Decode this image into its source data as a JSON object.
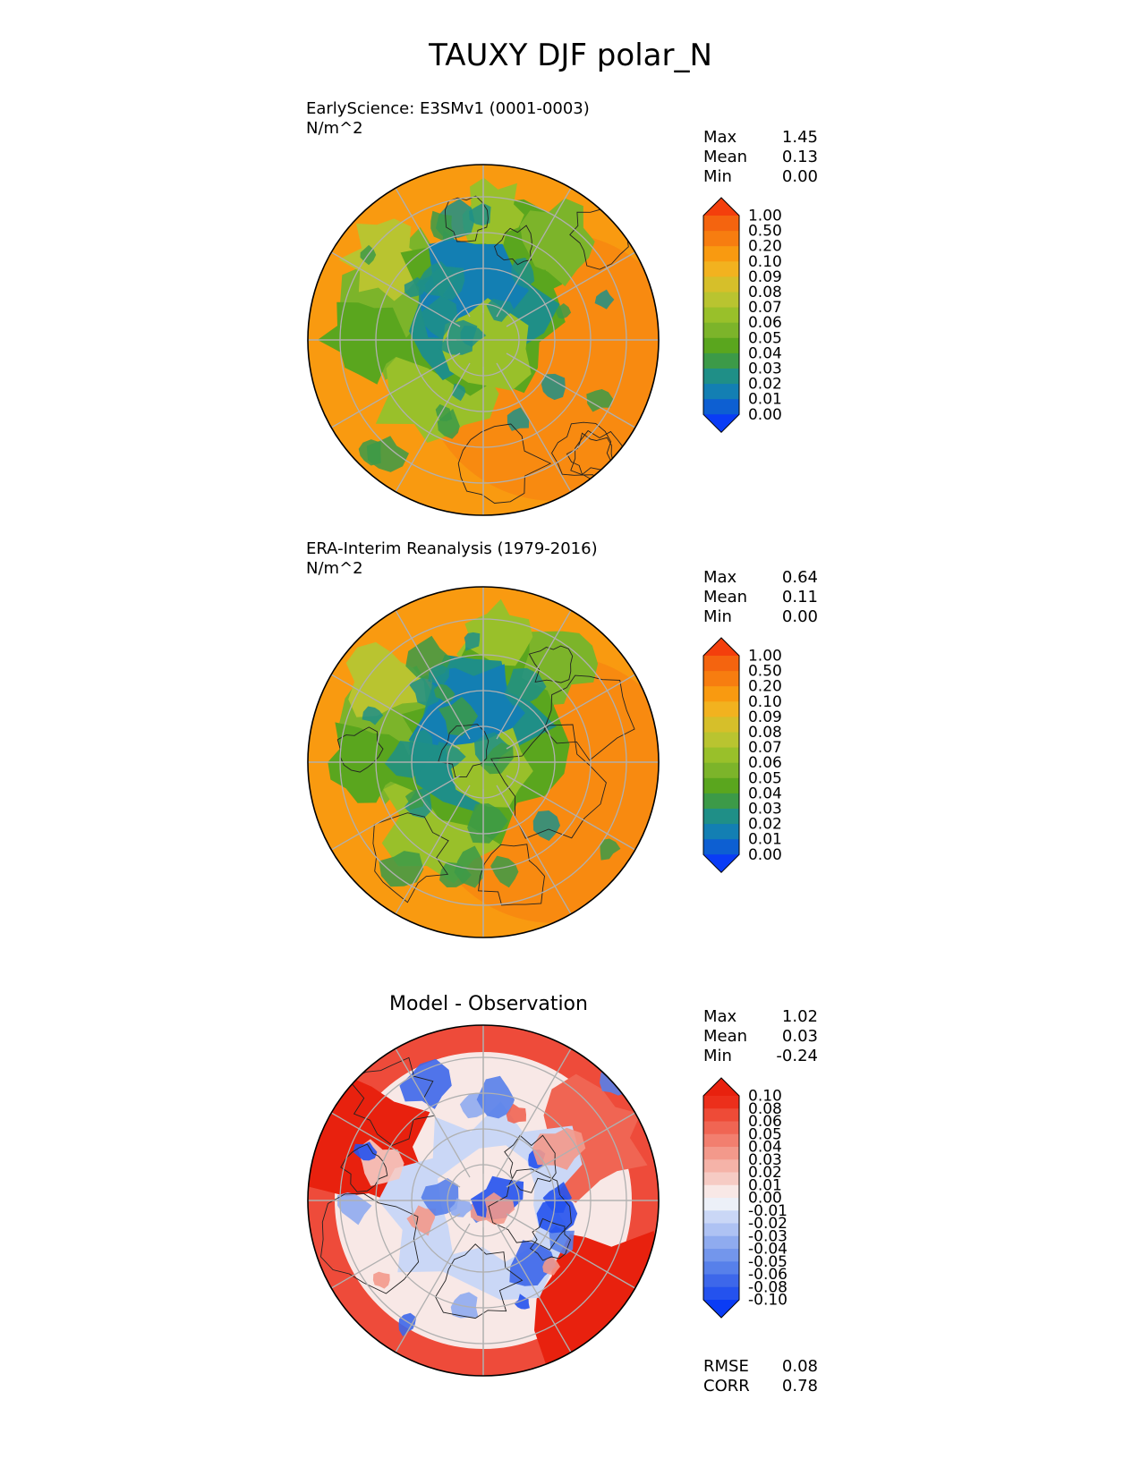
{
  "title": "TAUXY DJF polar_N",
  "panels": [
    {
      "id": "test",
      "title": "EarlyScience: E3SMv1 (0001-0003)",
      "units": "N/m^2",
      "stats": [
        {
          "label": "Max",
          "value": "1.45"
        },
        {
          "label": "Mean",
          "value": "0.13"
        },
        {
          "label": "Min",
          "value": "0.00"
        }
      ]
    },
    {
      "id": "reference",
      "title": "ERA-Interim Reanalysis (1979-2016)",
      "units": "N/m^2",
      "stats": [
        {
          "label": "Max",
          "value": "0.64"
        },
        {
          "label": "Mean",
          "value": "0.11"
        },
        {
          "label": "Min",
          "value": "0.00"
        }
      ]
    },
    {
      "id": "diff",
      "title": "Model - Observation",
      "units": "",
      "stats": [
        {
          "label": "Max",
          "value": "1.02"
        },
        {
          "label": "Mean",
          "value": "0.03"
        },
        {
          "label": "Min",
          "value": "-0.24"
        }
      ],
      "metrics": [
        {
          "label": "RMSE",
          "value": "0.08"
        },
        {
          "label": "CORR",
          "value": "0.78"
        }
      ]
    }
  ],
  "chart_data": [
    {
      "type": "heatmap",
      "projection": "north polar stereographic",
      "panel": "test",
      "colorbar_levels": [
        "0.00",
        "0.01",
        "0.02",
        "0.03",
        "0.04",
        "0.05",
        "0.06",
        "0.07",
        "0.08",
        "0.09",
        "0.10",
        "0.20",
        "0.50",
        "1.00"
      ],
      "colors": [
        "#0a3cf5",
        "#0d5fd2",
        "#137fb3",
        "#1f8f87",
        "#3c9a48",
        "#5aa61e",
        "#7cb42a",
        "#99c02a",
        "#b9c430",
        "#d6bf2a",
        "#f2b21f",
        "#f99a10",
        "#f77d10",
        "#f4640f",
        "#f43f0c"
      ]
    },
    {
      "type": "heatmap",
      "projection": "north polar stereographic",
      "panel": "reference",
      "colorbar_levels": [
        "0.00",
        "0.01",
        "0.02",
        "0.03",
        "0.04",
        "0.05",
        "0.06",
        "0.07",
        "0.08",
        "0.09",
        "0.10",
        "0.20",
        "0.50",
        "1.00"
      ],
      "colors": [
        "#0a3cf5",
        "#0d5fd2",
        "#137fb3",
        "#1f8f87",
        "#3c9a48",
        "#5aa61e",
        "#7cb42a",
        "#99c02a",
        "#b9c430",
        "#d6bf2a",
        "#f2b21f",
        "#f99a10",
        "#f77d10",
        "#f4640f",
        "#f43f0c"
      ]
    },
    {
      "type": "heatmap",
      "projection": "north polar stereographic",
      "panel": "diff",
      "colorbar_levels": [
        "-0.10",
        "-0.08",
        "-0.06",
        "-0.05",
        "-0.04",
        "-0.03",
        "-0.02",
        "-0.01",
        "0.00",
        "0.01",
        "0.02",
        "0.03",
        "0.04",
        "0.05",
        "0.06",
        "0.08",
        "0.10"
      ],
      "colors": [
        "#0a3cf5",
        "#2452ee",
        "#3d67ea",
        "#5780ea",
        "#7396ec",
        "#8fabef",
        "#aec2f3",
        "#cad7f6",
        "#ecf0f8",
        "#f8e8e6",
        "#f6cbc4",
        "#f5b3a8",
        "#f3998b",
        "#f27f6f",
        "#f06553",
        "#ee4b37",
        "#ec2f1b",
        "#e8210e"
      ]
    }
  ]
}
